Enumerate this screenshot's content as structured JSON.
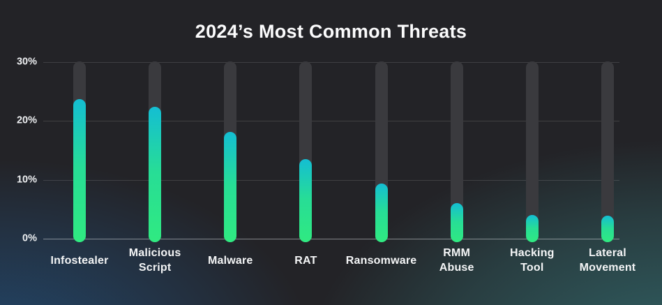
{
  "title": "2024’s Most Common Threats",
  "chart_data": {
    "type": "bar",
    "title": "2024’s Most Common Threats",
    "categories": [
      "Infostealer",
      "Malicious Script",
      "Malware",
      "RAT",
      "Ransomware",
      "RMM Abuse",
      "Hacking Tool",
      "Lateral Movement"
    ],
    "values": [
      23.7,
      22.4,
      18.2,
      13.5,
      9.4,
      6.1,
      4.0,
      3.9
    ],
    "unit": "%",
    "xlabel": "",
    "ylabel": "",
    "ylim": [
      0,
      30
    ],
    "yticks": [
      {
        "label": "30%",
        "value": 30
      },
      {
        "label": "20%",
        "value": 20
      },
      {
        "label": "10%",
        "value": 10
      },
      {
        "label": "0%",
        "value": 0
      }
    ],
    "grid": true,
    "legend": false,
    "layout": {
      "bar_style": "rounded-pill",
      "track_to_max": true
    },
    "colors": {
      "bar_gradient_top": "#14bed3",
      "bar_gradient_mid": "#27dd96",
      "bar_gradient_bottom": "#30ea81",
      "bar_track": "#3a3a3e",
      "background": "#232327",
      "glow_bottom_left": "#2265a4",
      "glow_bottom_right": "#3a8c8e",
      "gridline": "#ffffff21",
      "zero_line": "#d7dade8c",
      "text": "#f4f5f6"
    }
  }
}
